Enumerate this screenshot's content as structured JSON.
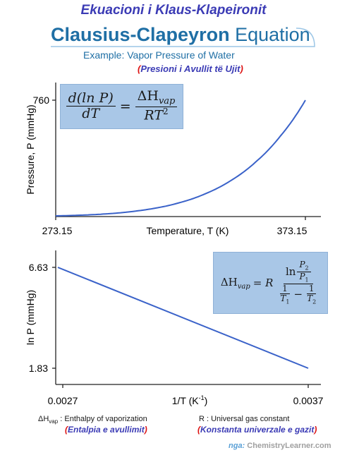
{
  "header": {
    "albanian_title": "Ekuacioni i Klaus-Klapeironit",
    "title_bold": "Clausius-Clapeyron",
    "title_light": "Equation",
    "subtitle": "Example: Vapor Pressure of Water",
    "subtitle_albanian": "Presioni i Avullit të Ujit",
    "paren_open": "(",
    "paren_close": ")"
  },
  "chart_data": [
    {
      "type": "line",
      "xlabel": "Temperature, T (K)",
      "ylabel": "Pressure, P (mmHg)",
      "xlim": [
        273.15,
        373.15
      ],
      "ylim": [
        0,
        760
      ],
      "x_ticks": [
        "273.15",
        "373.15"
      ],
      "y_ticks": [
        "760"
      ],
      "series": [
        {
          "x": [
            273.15,
            283.15,
            293.15,
            303.15,
            313.15,
            323.15,
            333.15,
            343.15,
            353.15,
            363.15,
            373.15
          ],
          "y": [
            4.6,
            9.2,
            17.5,
            31.8,
            55.3,
            92.5,
            149.4,
            233.7,
            355.1,
            525.8,
            760
          ]
        }
      ],
      "color": "#3a62c9",
      "formula": {
        "lhs_num": "d(ln P)",
        "lhs_den": "dT",
        "eq": "=",
        "rhs_num": "ΔH",
        "rhs_num_sub": "vap",
        "rhs_den": "RT",
        "rhs_den_sup": "2"
      }
    },
    {
      "type": "line",
      "xlabel": "1/T (K",
      "xlabel_sup": "-1",
      "xlabel_close": ")",
      "ylabel": "ln P (mmHg)",
      "xlim": [
        0.0027,
        0.0037
      ],
      "ylim": [
        1.83,
        6.63
      ],
      "x_ticks": [
        "0.0027",
        "0.0037"
      ],
      "y_ticks": [
        "6.63",
        "1.83"
      ],
      "series": [
        {
          "x": [
            0.00268,
            0.0037
          ],
          "y": [
            6.63,
            1.83
          ]
        }
      ],
      "color": "#3a62c9",
      "formula": {
        "lhs": "ΔH",
        "lhs_sub": "vap",
        "eq": "= R",
        "ln": "ln",
        "p2": "P",
        "p2_sub": "2",
        "p1": "P",
        "p1_sub": "1",
        "one_a": "1",
        "t1": "T",
        "t1_sub": "1",
        "minus": "−",
        "one_b": "1",
        "t2": "T",
        "t2_sub": "2"
      }
    }
  ],
  "legend": {
    "enthalpy_symbol": "ΔH",
    "enthalpy_sub": "vap",
    "enthalpy_text": " : Enthalpy of vaporization",
    "enthalpy_albanian": "Entalpia e avullimit",
    "gas_text": "R : Universal gas constant",
    "gas_albanian": "Konstanta univerzale e gazit"
  },
  "credit": {
    "prefix": "nga:",
    "site": "ChemistryLearner.com"
  }
}
